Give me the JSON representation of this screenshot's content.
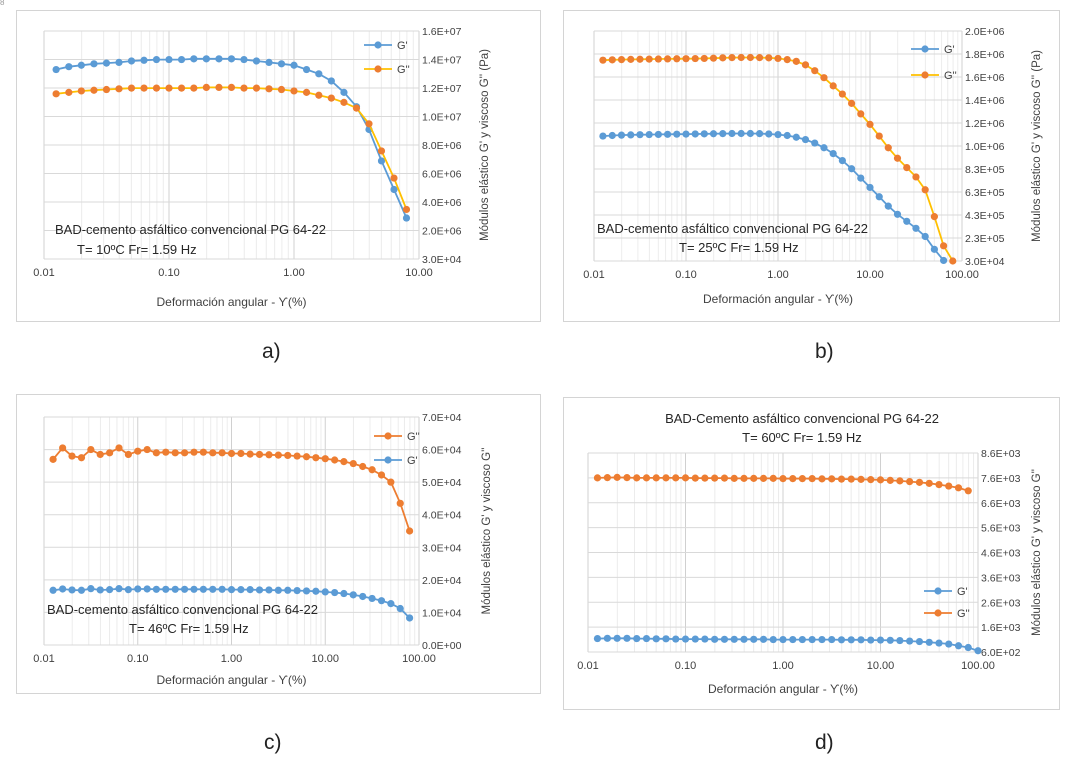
{
  "stray_mark": "8",
  "captions": {
    "a": "a)",
    "b": "b)",
    "c": "c)",
    "d": "d)"
  },
  "chart_data": [
    {
      "id": "a",
      "type": "line",
      "x_scale": "log",
      "xlim": [
        0.01,
        10
      ],
      "xticks": [
        "0.01",
        "0.10",
        "1.00",
        "10.00"
      ],
      "xlabel": "Deformación angular - ϒ(%)",
      "ylabel": "Módulos elástico G' y viscoso G'' (Pa)",
      "ylim": [
        30000.0,
        16000000.0
      ],
      "yticks": [
        "3.0E+04",
        "2.0E+06",
        "4.0E+06",
        "6.0E+06",
        "8.0E+06",
        "1.0E+07",
        "1.2E+07",
        "1.4E+07",
        "1.6E+07"
      ],
      "annotation": [
        "BAD-cemento asfáltico convencional PG 64-22",
        "T= 10ºC Fr= 1.59 Hz"
      ],
      "legend_position": "top-right",
      "grid": true,
      "series": [
        {
          "name": "G'",
          "color": "#5b9bd5",
          "line_color": "#5b9bd5",
          "x": [
            0.0125,
            0.0158,
            0.0199,
            0.0251,
            0.0316,
            0.0398,
            0.0501,
            0.0631,
            0.0794,
            0.1,
            0.126,
            0.158,
            0.199,
            0.251,
            0.316,
            0.398,
            0.501,
            0.631,
            0.794,
            1.0,
            1.26,
            1.58,
            1.99,
            2.51,
            3.16,
            3.98,
            5.01,
            6.31,
            7.94
          ],
          "y": [
            13300000.0,
            13500000.0,
            13600000.0,
            13700000.0,
            13750000.0,
            13800000.0,
            13900000.0,
            13950000.0,
            14000000.0,
            14000000.0,
            14000000.0,
            14050000.0,
            14050000.0,
            14050000.0,
            14050000.0,
            14000000.0,
            13900000.0,
            13800000.0,
            13700000.0,
            13600000.0,
            13300000.0,
            13000000.0,
            12500000.0,
            11700000.0,
            10700000.0,
            9100000.0,
            6900000.0,
            4900000.0,
            2900000.0
          ]
        },
        {
          "name": "G''",
          "color": "#ed7d31",
          "line_color": "#ffc000",
          "x": [
            0.0125,
            0.0158,
            0.0199,
            0.0251,
            0.0316,
            0.0398,
            0.0501,
            0.0631,
            0.0794,
            0.1,
            0.126,
            0.158,
            0.199,
            0.251,
            0.316,
            0.398,
            0.501,
            0.631,
            0.794,
            1.0,
            1.26,
            1.58,
            1.99,
            2.51,
            3.16,
            3.98,
            5.01,
            6.31,
            7.94
          ],
          "y": [
            11600000.0,
            11700000.0,
            11800000.0,
            11850000.0,
            11900000.0,
            11950000.0,
            12000000.0,
            12000000.0,
            12000000.0,
            12000000.0,
            12000000.0,
            12000000.0,
            12050000.0,
            12050000.0,
            12050000.0,
            12000000.0,
            12000000.0,
            11950000.0,
            11900000.0,
            11800000.0,
            11700000.0,
            11500000.0,
            11300000.0,
            11000000.0,
            10600000.0,
            9500000.0,
            7600000.0,
            5700000.0,
            3500000.0
          ]
        }
      ]
    },
    {
      "id": "b",
      "type": "line",
      "x_scale": "log",
      "xlim": [
        0.01,
        100
      ],
      "xticks": [
        "0.01",
        "0.10",
        "1.00",
        "10.00",
        "100.00"
      ],
      "xlabel": "Deformación angular - ϒ(%)",
      "ylabel": "Módulos elástico G' y viscoso G'' (Pa)",
      "ylim": [
        30000.0,
        2000000.0
      ],
      "yticks": [
        "3.0E+04",
        "2.3E+05",
        "4.3E+05",
        "6.3E+05",
        "8.3E+05",
        "1.0E+06",
        "1.2E+06",
        "1.4E+06",
        "1.6E+06",
        "1.8E+06",
        "2.0E+06"
      ],
      "annotation": [
        "BAD-cemento asfáltico convencional PG 64-22",
        "T= 25ºC Fr= 1.59 Hz"
      ],
      "legend_position": "top-right",
      "grid": true,
      "series": [
        {
          "name": "G'",
          "color": "#5b9bd5",
          "line_color": "#5b9bd5",
          "x": [
            0.0125,
            0.0158,
            0.0199,
            0.0251,
            0.0316,
            0.0398,
            0.0501,
            0.0631,
            0.0794,
            0.1,
            0.126,
            0.158,
            0.199,
            0.251,
            0.316,
            0.398,
            0.501,
            0.631,
            0.794,
            1.0,
            1.26,
            1.58,
            1.99,
            2.51,
            3.16,
            3.98,
            5.01,
            6.31,
            7.94,
            10.0,
            12.6,
            15.8,
            19.9,
            25.1,
            31.6,
            39.8,
            50.1,
            63.1
          ],
          "y": [
            1100000.0,
            1105000.0,
            1108000.0,
            1110000.0,
            1112000.0,
            1113000.0,
            1114000.0,
            1115000.0,
            1116000.0,
            1117000.0,
            1118000.0,
            1119000.0,
            1120000.0,
            1121000.0,
            1122000.0,
            1122000.0,
            1122000.0,
            1121000.0,
            1118000.0,
            1113000.0,
            1105000.0,
            1090000.0,
            1070000.0,
            1040000.0,
            1000000.0,
            950000.0,
            890000.0,
            820000.0,
            740000.0,
            660000.0,
            580000.0,
            500000.0,
            430000.0,
            370000.0,
            310000.0,
            240000.0,
            130000.0,
            35000.0
          ]
        },
        {
          "name": "G''",
          "color": "#ed7d31",
          "line_color": "#ffc000",
          "x": [
            0.0125,
            0.0158,
            0.0199,
            0.0251,
            0.0316,
            0.0398,
            0.0501,
            0.0631,
            0.0794,
            0.1,
            0.126,
            0.158,
            0.199,
            0.251,
            0.316,
            0.398,
            0.501,
            0.631,
            0.794,
            1.0,
            1.26,
            1.58,
            1.99,
            2.51,
            3.16,
            3.98,
            5.01,
            6.31,
            7.94,
            10.0,
            12.6,
            15.8,
            19.9,
            25.1,
            31.6,
            39.8,
            50.1,
            63.1,
            79.4
          ],
          "y": [
            1750000.0,
            1753000.0,
            1755000.0,
            1757000.0,
            1758000.0,
            1759000.0,
            1760000.0,
            1761000.0,
            1762000.0,
            1763000.0,
            1764000.0,
            1765000.0,
            1767000.0,
            1770000.0,
            1772000.0,
            1773000.0,
            1773000.0,
            1772000.0,
            1770000.0,
            1765000.0,
            1755000.0,
            1740000.0,
            1710000.0,
            1660000.0,
            1600000.0,
            1530000.0,
            1460000.0,
            1380000.0,
            1290000.0,
            1200000.0,
            1100000.0,
            1000000.0,
            910000.0,
            830000.0,
            750000.0,
            640000.0,
            410000.0,
            160000.0,
            30000.0
          ]
        }
      ]
    },
    {
      "id": "c",
      "type": "line",
      "x_scale": "log",
      "xlim": [
        0.01,
        100
      ],
      "xticks": [
        "0.01",
        "0.10",
        "1.00",
        "10.00",
        "100.00"
      ],
      "xlabel": "Deformación angular - ϒ(%)",
      "ylabel": "Módulos elástico G' y viscoso G''",
      "ylim": [
        0,
        70000.0
      ],
      "yticks": [
        "0.0E+00",
        "1.0E+04",
        "2.0E+04",
        "3.0E+04",
        "4.0E+04",
        "5.0E+04",
        "6.0E+04",
        "7.0E+04"
      ],
      "annotation": [
        "BAD-cemento asfáltico convencional PG 64-22",
        "T= 46ºC Fr= 1.59 Hz"
      ],
      "legend_position": "top-right",
      "grid": true,
      "series": [
        {
          "name": "G''",
          "color": "#ed7d31",
          "line_color": "#ed7d31",
          "x": [
            0.0125,
            0.0158,
            0.0199,
            0.0251,
            0.0316,
            0.0398,
            0.0501,
            0.0631,
            0.0794,
            0.1,
            0.126,
            0.158,
            0.199,
            0.251,
            0.316,
            0.398,
            0.501,
            0.631,
            0.794,
            1.0,
            1.26,
            1.58,
            1.99,
            2.51,
            3.16,
            3.98,
            5.01,
            6.31,
            7.94,
            10.0,
            12.6,
            15.8,
            19.9,
            25.1,
            31.6,
            39.8,
            50.1,
            63.1,
            79.4
          ],
          "y": [
            57000.0,
            60500.0,
            58000.0,
            57500.0,
            60000.0,
            58500.0,
            59000.0,
            60500.0,
            58500.0,
            59500.0,
            60000.0,
            59000.0,
            59200.0,
            59000.0,
            59000.0,
            59200.0,
            59200.0,
            59000.0,
            59000.0,
            58800.0,
            58800.0,
            58600.0,
            58500.0,
            58400.0,
            58300.0,
            58200.0,
            58000.0,
            57800.0,
            57500.0,
            57200.0,
            56800.0,
            56300.0,
            55700.0,
            54800.0,
            53800.0,
            52200.0,
            50000.0,
            43500.0,
            35000.0
          ]
        },
        {
          "name": "G'",
          "color": "#5b9bd5",
          "line_color": "#5b9bd5",
          "x": [
            0.0125,
            0.0158,
            0.0199,
            0.0251,
            0.0316,
            0.0398,
            0.0501,
            0.0631,
            0.0794,
            0.1,
            0.126,
            0.158,
            0.199,
            0.251,
            0.316,
            0.398,
            0.501,
            0.631,
            0.794,
            1.0,
            1.26,
            1.58,
            1.99,
            2.51,
            3.16,
            3.98,
            5.01,
            6.31,
            7.94,
            10.0,
            12.6,
            15.8,
            19.9,
            25.1,
            31.6,
            39.8,
            50.1,
            63.1,
            79.4
          ],
          "y": [
            16800.0,
            17200.0,
            16900.0,
            16800.0,
            17300.0,
            16900.0,
            17000.0,
            17300.0,
            17000.0,
            17200.0,
            17200.0,
            17100.0,
            17100.0,
            17100.0,
            17100.0,
            17100.0,
            17100.0,
            17100.0,
            17100.0,
            17000.0,
            17000.0,
            17000.0,
            16900.0,
            16900.0,
            16800.0,
            16800.0,
            16700.0,
            16600.0,
            16500.0,
            16300.0,
            16100.0,
            15800.0,
            15400.0,
            14900.0,
            14300.0,
            13600.0,
            12700.0,
            11200.0,
            8300.0
          ]
        }
      ]
    },
    {
      "id": "d",
      "type": "line",
      "x_scale": "log",
      "xlim": [
        0.01,
        100
      ],
      "xticks": [
        "0.01",
        "0.10",
        "1.00",
        "10.00",
        "100.00"
      ],
      "xlabel": "Deformación angular - ϒ(%)",
      "ylabel": "Módulos elástico G' y viscoso G''",
      "ylim": [
        600.0,
        8600.0
      ],
      "yticks": [
        "6.0E+02",
        "1.6E+03",
        "2.6E+03",
        "3.6E+03",
        "4.6E+03",
        "5.6E+03",
        "6.6E+03",
        "7.6E+03",
        "8.6E+03"
      ],
      "title": [
        "BAD-Cemento asfáltico convencional PG 64-22",
        "T= 60ºC Fr= 1.59 Hz"
      ],
      "legend_position": "bottom-right",
      "grid": true,
      "series": [
        {
          "name": "G'",
          "color": "#5b9bd5",
          "line_color": "#5b9bd5",
          "x": [
            0.0125,
            0.0158,
            0.0199,
            0.0251,
            0.0316,
            0.0398,
            0.0501,
            0.0631,
            0.0794,
            0.1,
            0.126,
            0.158,
            0.199,
            0.251,
            0.316,
            0.398,
            0.501,
            0.631,
            0.794,
            1.0,
            1.26,
            1.58,
            1.99,
            2.51,
            3.16,
            3.98,
            5.01,
            6.31,
            7.94,
            10.0,
            12.6,
            15.8,
            19.9,
            25.1,
            31.6,
            39.8,
            50.1,
            63.1,
            79.4,
            100
          ],
          "y": [
            1140.0,
            1150.0,
            1150.0,
            1150.0,
            1140.0,
            1140.0,
            1130.0,
            1130.0,
            1120.0,
            1120.0,
            1120.0,
            1120.0,
            1110.0,
            1110.0,
            1110.0,
            1110.0,
            1110.0,
            1110.0,
            1100.0,
            1100.0,
            1100.0,
            1100.0,
            1100.0,
            1100.0,
            1100.0,
            1090.0,
            1090.0,
            1090.0,
            1080.0,
            1080.0,
            1070.0,
            1060.0,
            1040.0,
            1020.0,
            990.0,
            960.0,
            920.0,
            850.0,
            780.0,
            650.0
          ]
        },
        {
          "name": "G''",
          "color": "#ed7d31",
          "line_color": "#ed7d31",
          "x": [
            0.0125,
            0.0158,
            0.0199,
            0.0251,
            0.0316,
            0.0398,
            0.0501,
            0.0631,
            0.0794,
            0.1,
            0.126,
            0.158,
            0.199,
            0.251,
            0.316,
            0.398,
            0.501,
            0.631,
            0.794,
            1.0,
            1.26,
            1.58,
            1.99,
            2.51,
            3.16,
            3.98,
            5.01,
            6.31,
            7.94,
            10.0,
            12.6,
            15.8,
            19.9,
            25.1,
            31.6,
            39.8,
            50.1,
            63.1,
            79.4
          ],
          "y": [
            7600.0,
            7610.0,
            7620.0,
            7610.0,
            7600.0,
            7600.0,
            7600.0,
            7600.0,
            7600.0,
            7600.0,
            7590.0,
            7590.0,
            7590.0,
            7590.0,
            7580.0,
            7580.0,
            7580.0,
            7580.0,
            7580.0,
            7570.0,
            7570.0,
            7570.0,
            7570.0,
            7560.0,
            7560.0,
            7550.0,
            7550.0,
            7540.0,
            7530.0,
            7520.0,
            7500.0,
            7480.0,
            7450.0,
            7420.0,
            7380.0,
            7330.0,
            7270.0,
            7200.0,
            7080.0
          ]
        }
      ]
    }
  ]
}
